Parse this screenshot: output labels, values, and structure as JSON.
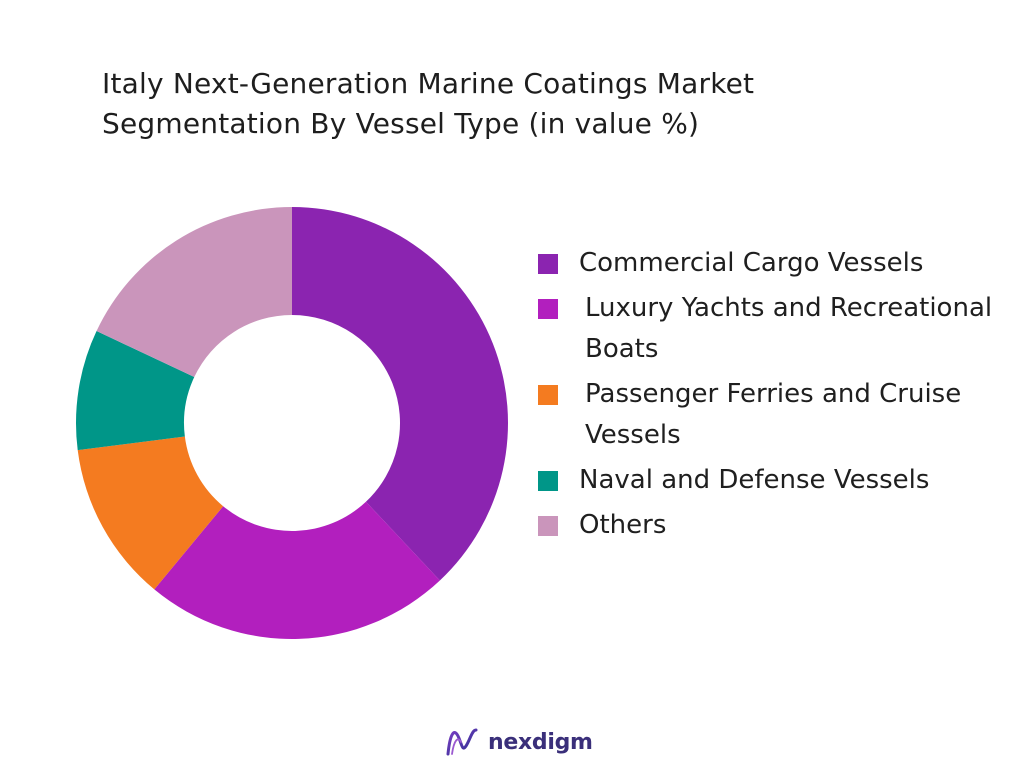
{
  "chart_data": {
    "type": "pie",
    "subtype": "donut",
    "title_line1": "Italy Next-Generation Marine Coatings Market",
    "title_line2": "Segmentation By Vessel Type (in value %)",
    "legend_position": "right",
    "series": [
      {
        "name": "Commercial Cargo Vessels",
        "value": 38,
        "color": "#8B24B0"
      },
      {
        "name": "Luxury Yachts and Recreational Boats",
        "value": 23,
        "color": "#B21FBE"
      },
      {
        "name": "Passenger Ferries and Cruise Vessels",
        "value": 12,
        "color": "#F47B20"
      },
      {
        "name": "Naval and Defense Vessels",
        "value": 9,
        "color": "#009688"
      },
      {
        "name": "Others",
        "value": 18,
        "color": "#CA95BB"
      }
    ]
  },
  "legend": {
    "items": [
      {
        "label": "Commercial Cargo Vessels",
        "color": "#8B24B0"
      },
      {
        "label": "Luxury Yachts and Recreational Boats",
        "color": "#B21FBE"
      },
      {
        "label": "Passenger Ferries and Cruise Vessels",
        "color": "#F47B20"
      },
      {
        "label": "Naval and Defense Vessels",
        "color": "#009688"
      },
      {
        "label": "Others",
        "color": "#CA95BB"
      }
    ]
  },
  "brand": {
    "name": "nexdigm",
    "logo_icon": "nexdigm-logo-icon"
  }
}
